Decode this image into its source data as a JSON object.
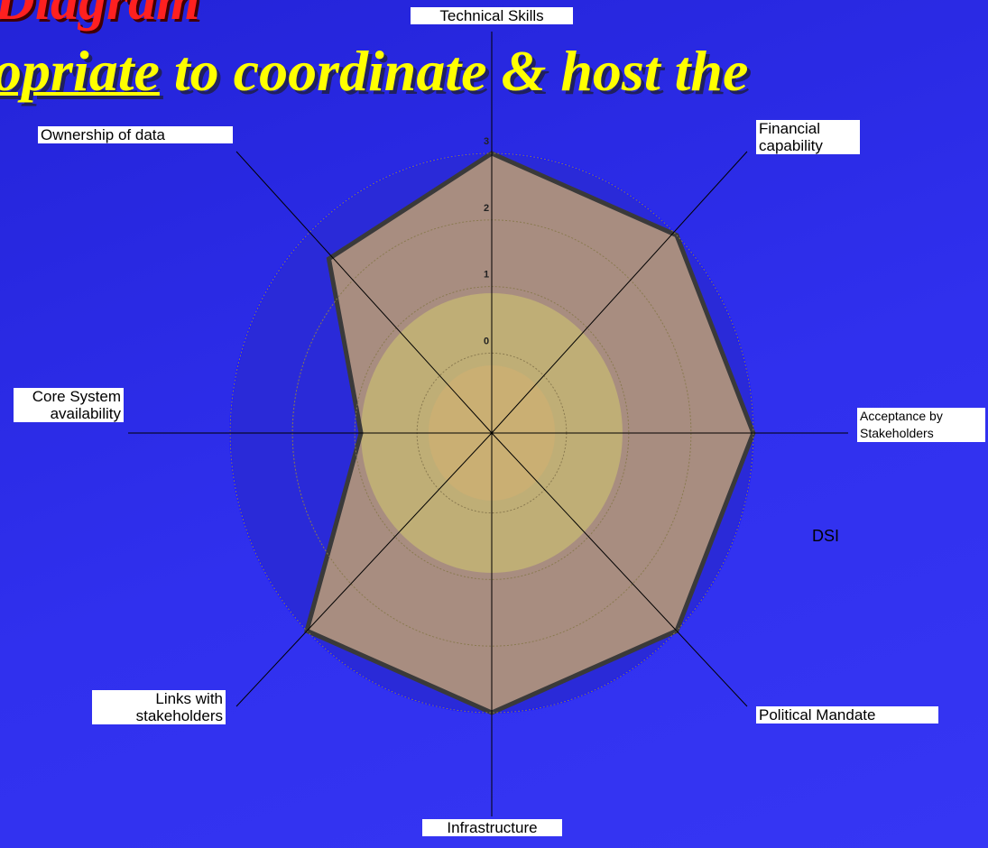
{
  "chart_data": {
    "type": "radar",
    "title": "Diagram",
    "subtitle_parts": [
      "opriate",
      "to coordinate & host the"
    ],
    "categories": [
      "Technical Skills",
      "Financial capability",
      "Acceptance by Stakeholders",
      "Political Mandate",
      "Infrastructure",
      "Links with stakeholders",
      "Core System availability",
      "Ownership of data"
    ],
    "series": [
      {
        "name": "DSI",
        "color": "#c4a46c",
        "values": [
          3,
          3,
          3,
          3,
          3,
          3,
          0.9,
          2.5
        ]
      }
    ],
    "rlim": [
      -1.2,
      3
    ],
    "rticks": [
      0,
      1,
      2,
      3
    ],
    "grid": true
  }
}
